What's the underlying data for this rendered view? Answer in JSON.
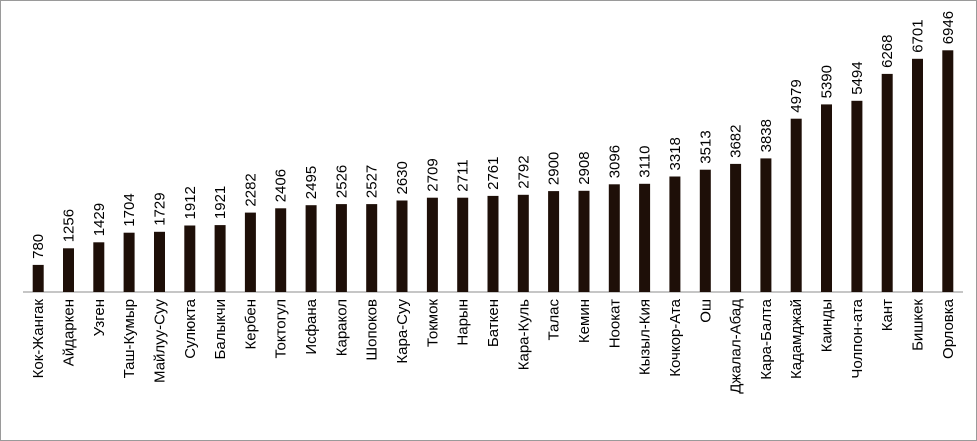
{
  "chart_data": {
    "type": "bar",
    "title": "",
    "xlabel": "",
    "ylabel": "",
    "ylim": [
      0,
      7500
    ],
    "grid": false,
    "legend": "none",
    "bar_color": "#1e0f08",
    "categories": [
      "Кок-Жангак",
      "Айдаркен",
      "Узген",
      "Таш-Кумыр",
      "Майлуу-Суу",
      "Сулюкта",
      "Балыкчи",
      "Кербен",
      "Токтогул",
      "Исфана",
      "Каракол",
      "Шопоков",
      "Кара-Суу",
      "Токмок",
      "Нарын",
      "Баткен",
      "Кара-Куль",
      "Талас",
      "Кемин",
      "Ноокат",
      "Кызыл-Кия",
      "Кочкор-Ата",
      "Ош",
      "Джалал-Абад",
      "Кара-Балта",
      "Кадамджай",
      "Каинды",
      "Чолпон-ата",
      "Кант",
      "Бишкек",
      "Орловка"
    ],
    "values": [
      780,
      1256,
      1429,
      1704,
      1729,
      1912,
      1921,
      2282,
      2406,
      2495,
      2526,
      2527,
      2630,
      2709,
      2711,
      2761,
      2792,
      2900,
      2908,
      3096,
      3110,
      3318,
      3513,
      3682,
      3838,
      4979,
      5390,
      5494,
      6268,
      6701,
      6946
    ]
  }
}
